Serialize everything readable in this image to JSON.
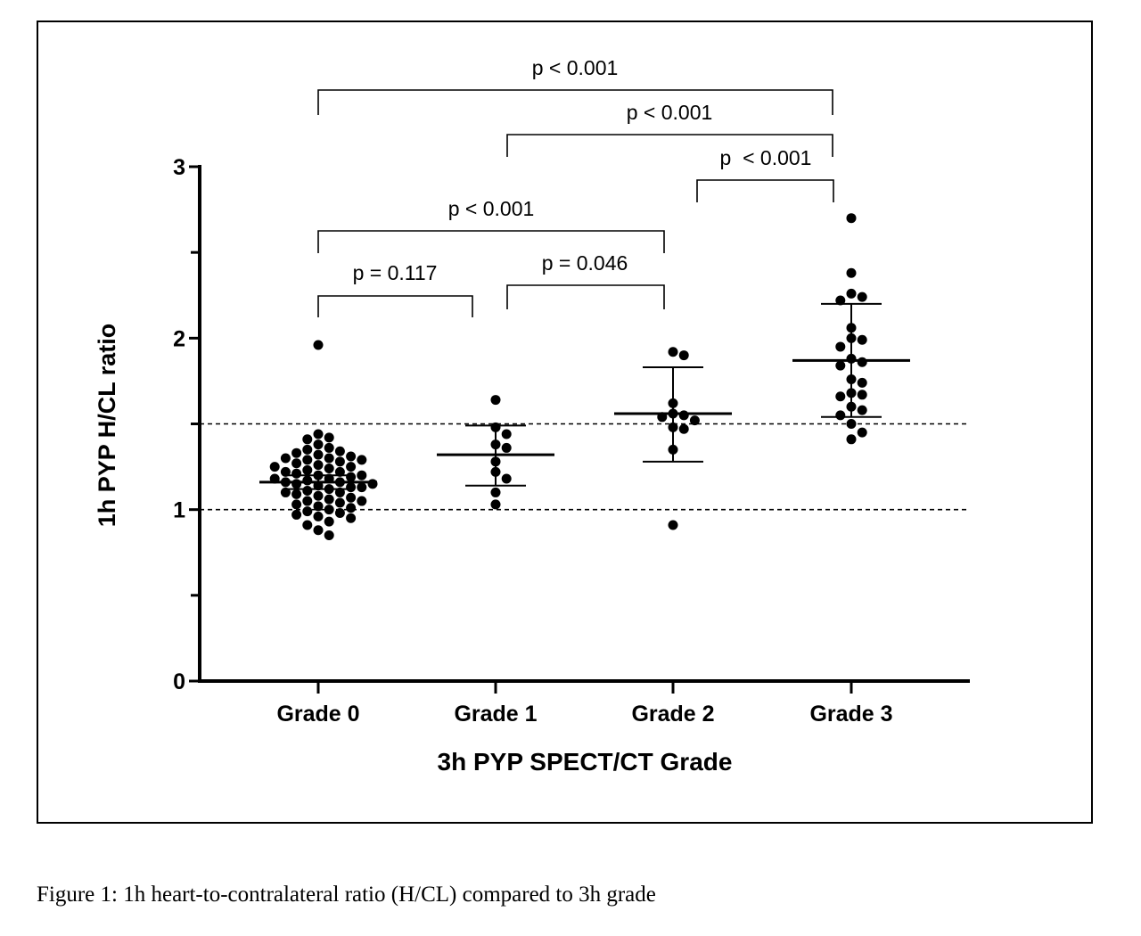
{
  "caption": "Figure 1: 1h heart-to-contralateral ratio (H/CL) compared to 3h grade",
  "chart_data": {
    "type": "scatter",
    "title": "",
    "xlabel": "3h PYP SPECT/CT Grade",
    "ylabel": "1h PYP H/CL ratio",
    "categories": [
      "Grade 0",
      "Grade 1",
      "Grade 2",
      "Grade 3"
    ],
    "ylim": [
      0,
      3
    ],
    "yticks": [
      0,
      1,
      2,
      3
    ],
    "yminor_ticks": [
      0.5,
      1.5,
      2.5
    ],
    "reference_lines": [
      1.0,
      1.5
    ],
    "grid": false,
    "legend": "none",
    "marker_color": "#000000",
    "groups": [
      {
        "name": "Grade 0",
        "mean": 1.16,
        "sd_low": 1.12,
        "sd_high": 1.2,
        "values": [
          1.96,
          1.44,
          1.42,
          1.41,
          1.38,
          1.36,
          1.35,
          1.34,
          1.33,
          1.32,
          1.31,
          1.3,
          1.3,
          1.29,
          1.29,
          1.28,
          1.27,
          1.26,
          1.25,
          1.25,
          1.24,
          1.23,
          1.22,
          1.22,
          1.21,
          1.2,
          1.2,
          1.19,
          1.18,
          1.18,
          1.17,
          1.16,
          1.16,
          1.15,
          1.15,
          1.14,
          1.13,
          1.13,
          1.12,
          1.11,
          1.1,
          1.1,
          1.09,
          1.08,
          1.07,
          1.06,
          1.05,
          1.05,
          1.04,
          1.03,
          1.02,
          1.01,
          1.0,
          0.99,
          0.98,
          0.97,
          0.96,
          0.95,
          0.93,
          0.91,
          0.88,
          0.85
        ]
      },
      {
        "name": "Grade 1",
        "mean": 1.32,
        "sd_low": 1.14,
        "sd_high": 1.49,
        "values": [
          1.64,
          1.48,
          1.44,
          1.38,
          1.36,
          1.28,
          1.22,
          1.18,
          1.1,
          1.03
        ]
      },
      {
        "name": "Grade 2",
        "mean": 1.56,
        "sd_low": 1.28,
        "sd_high": 1.83,
        "values": [
          1.92,
          1.9,
          1.62,
          1.56,
          1.55,
          1.54,
          1.52,
          1.48,
          1.47,
          1.35,
          0.91
        ]
      },
      {
        "name": "Grade 3",
        "mean": 1.87,
        "sd_low": 1.54,
        "sd_high": 2.2,
        "values": [
          2.7,
          2.38,
          2.26,
          2.24,
          2.22,
          2.06,
          2.0,
          1.99,
          1.95,
          1.88,
          1.86,
          1.84,
          1.76,
          1.74,
          1.68,
          1.67,
          1.66,
          1.6,
          1.58,
          1.55,
          1.5,
          1.45,
          1.41
        ]
      }
    ],
    "comparisons": [
      {
        "from": "Grade 0",
        "to": "Grade 1",
        "label": "p = 0.117"
      },
      {
        "from": "Grade 1",
        "to": "Grade 2",
        "label": "p = 0.046"
      },
      {
        "from": "Grade 0",
        "to": "Grade 2",
        "label": "p < 0.001"
      },
      {
        "from": "Grade 2",
        "to": "Grade 3",
        "label": "p  < 0.001"
      },
      {
        "from": "Grade 1",
        "to": "Grade 3",
        "label": "p < 0.001"
      },
      {
        "from": "Grade 0",
        "to": "Grade 3",
        "label": "p < 0.001"
      }
    ]
  }
}
